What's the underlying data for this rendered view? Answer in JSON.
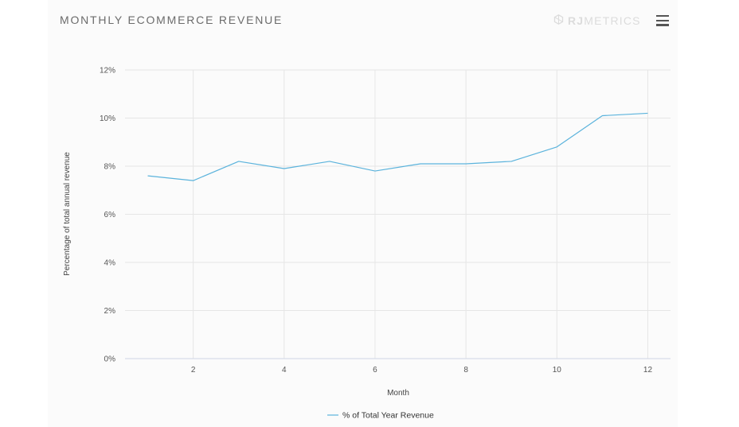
{
  "header": {
    "title": "MONTHLY ECOMMERCE REVENUE",
    "brand_strong": "RJ",
    "brand_light": "METRICS",
    "brand_icon": "rjmetrics-logo-icon",
    "menu_icon": "hamburger-menu-icon"
  },
  "colors": {
    "series": "#5bb3dc",
    "grid": "#e6e6e6"
  },
  "chart_data": {
    "type": "line",
    "title": "MONTHLY ECOMMERCE REVENUE",
    "xlabel": "Month",
    "ylabel": "Percentage of total annual revenue",
    "xlim": [
      0.5,
      12.5
    ],
    "ylim": [
      0,
      12
    ],
    "x_ticks": [
      2,
      4,
      6,
      8,
      10,
      12
    ],
    "y_ticks": [
      0,
      2,
      4,
      6,
      8,
      10,
      12
    ],
    "y_tick_labels": [
      "0%",
      "2%",
      "4%",
      "6%",
      "8%",
      "10%",
      "12%"
    ],
    "legend_position": "bottom-center",
    "grid": true,
    "series": [
      {
        "name": "% of Total Year Revenue",
        "x": [
          1,
          2,
          3,
          4,
          5,
          6,
          7,
          8,
          9,
          10,
          11,
          12
        ],
        "values": [
          7.6,
          7.4,
          8.2,
          7.9,
          8.2,
          7.8,
          8.1,
          8.1,
          8.2,
          8.8,
          10.1,
          10.2
        ]
      }
    ]
  }
}
